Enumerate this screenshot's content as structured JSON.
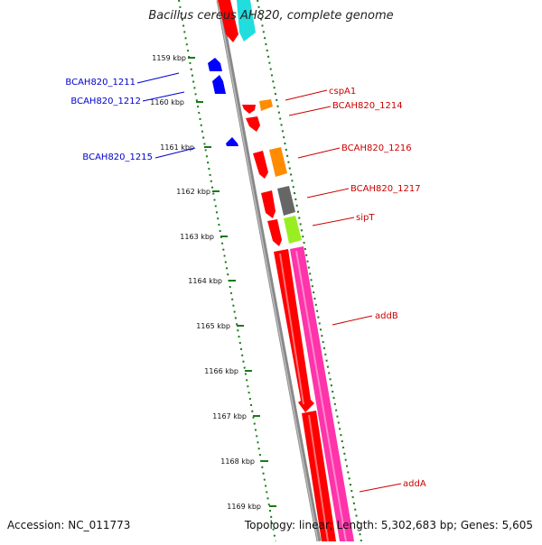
{
  "title": "Bacillus cereus AH820, complete genome",
  "footer": {
    "accession": "Accession: NC_011773",
    "summary": "Topology: linear; Length: 5,302,683 bp; Genes: 5,605"
  },
  "colors": {
    "axis": "#808080",
    "ruler": "#1a7a1a",
    "left_label": "#0000cc",
    "right_label": "#cc0000",
    "red_gene": "#ff0000",
    "orange_gene": "#ff8c00",
    "gray_gene": "#666666",
    "lime_gene": "#99ee22",
    "cyan_gene": "#22dddd",
    "magenta_gene": "#ff33aa",
    "blue_gene": "#0000ff"
  },
  "ruler_ticks": [
    "1159 kbp",
    "1160 kbp",
    "1161 kbp",
    "1162 kbp",
    "1163 kbp",
    "1164 kbp",
    "1165 kbp",
    "1166 kbp",
    "1167 kbp",
    "1168 kbp",
    "1169 kbp"
  ],
  "left_labels": [
    "BCAH820_1211",
    "BCAH820_1212",
    "BCAH820_1215"
  ],
  "right_labels": [
    "cspA1",
    "BCAH820_1214",
    "BCAH820_1216",
    "BCAH820_1217",
    "sipT",
    "addB",
    "addA"
  ]
}
